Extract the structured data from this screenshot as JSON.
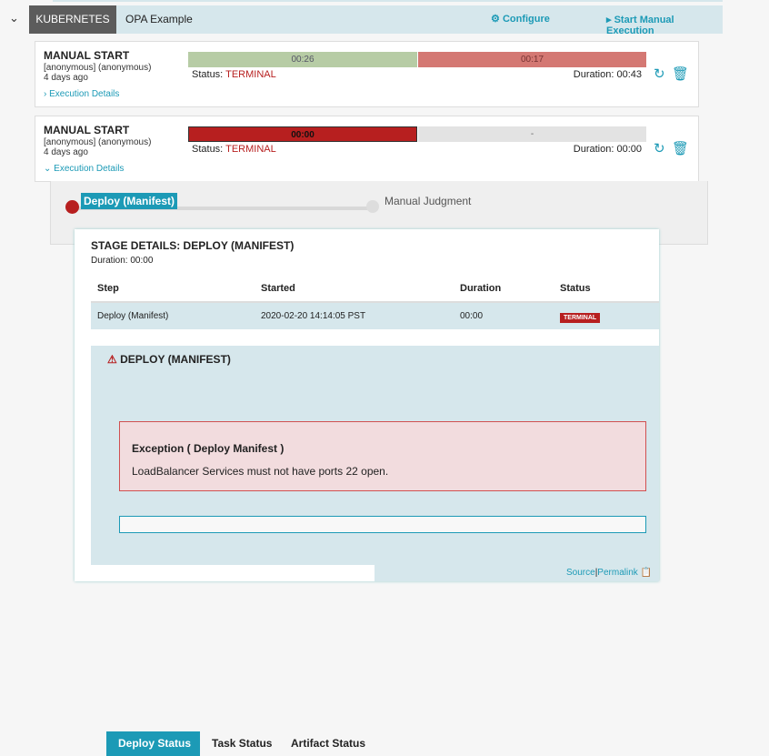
{
  "header": {
    "app": "KUBERNETES",
    "pipeline": "OPA Example",
    "configure": "Configure",
    "start": "Start Manual Execution"
  },
  "executions": [
    {
      "title": "MANUAL START",
      "user": "[anonymous] (anonymous)",
      "time": "4 days ago",
      "stages": [
        {
          "label": "00:26",
          "color": "#b7cca5"
        },
        {
          "label": "00:17",
          "color": "#d47873"
        }
      ],
      "status_label": "Status:",
      "status": "TERMINAL",
      "duration": "Duration: 00:43",
      "details": "Execution Details"
    },
    {
      "title": "MANUAL START",
      "user": "[anonymous] (anonymous)",
      "time": "4 days ago",
      "stages": [
        {
          "label": "00:00",
          "color": "#b71f1f"
        },
        {
          "label": "-",
          "color": "#e3e3e3"
        }
      ],
      "status_label": "Status:",
      "status": "TERMINAL",
      "duration": "Duration: 00:00",
      "details": "Execution Details"
    }
  ],
  "graph": {
    "stages": [
      "Deploy (Manifest)",
      "Manual Judgment"
    ]
  },
  "stage_details": {
    "title": "STAGE DETAILS: DEPLOY (MANIFEST)",
    "duration": "Duration: 00:00",
    "columns": [
      "Step",
      "Started",
      "Duration",
      "Status"
    ],
    "rows": [
      {
        "step": "Deploy (Manifest)",
        "started": "2020-02-20 14:14:05 PST",
        "duration": "00:00",
        "status": "TERMINAL"
      }
    ]
  },
  "step_panel": {
    "title": "DEPLOY (MANIFEST)",
    "tabs": [
      "Deploy Status",
      "Task Status",
      "Artifact Status"
    ],
    "active_tab": "Deploy Status",
    "error_title": "Exception ( Deploy Manifest )",
    "error_message": "LoadBalancer Services must not have ports 22 open.",
    "input_value": ""
  },
  "footer": {
    "source": "Source",
    "separator": "|",
    "permalink": "Permalink"
  }
}
